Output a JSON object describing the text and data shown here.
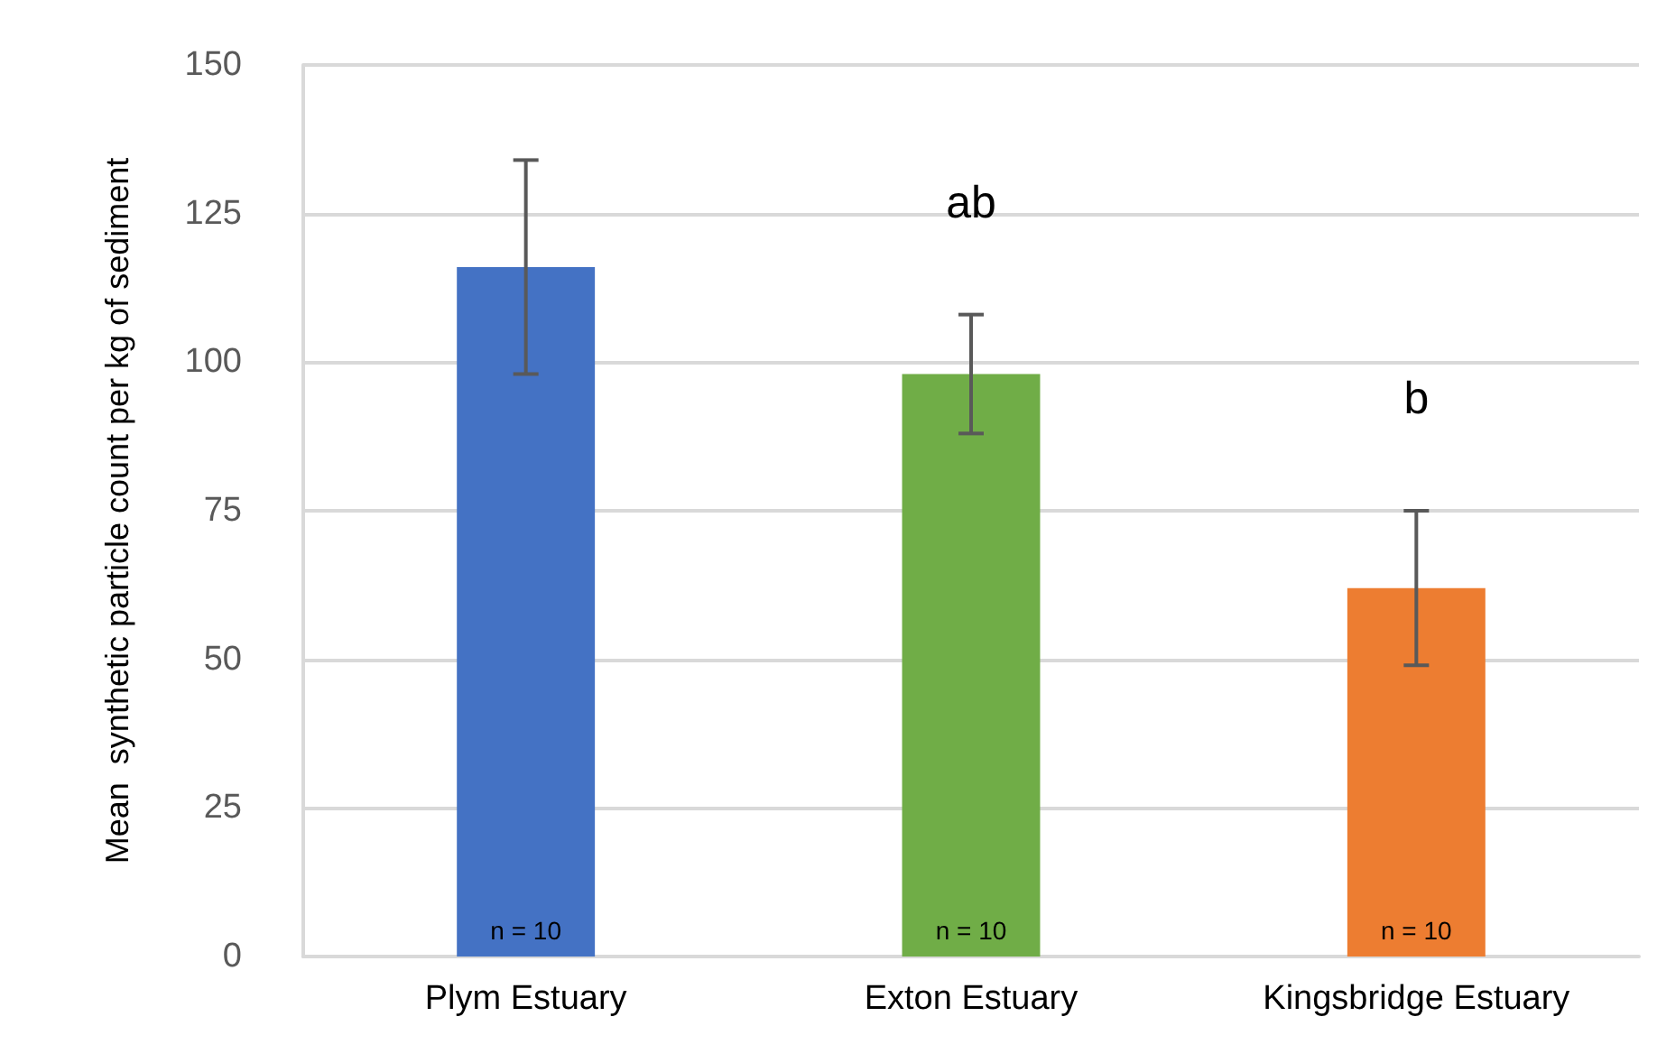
{
  "chart_data": {
    "type": "bar",
    "ylabel": "Mean  synthetic particle count per kg of sediment",
    "categories": [
      "Plym Estuary",
      "Exton Estuary",
      "Kingsbridge Estuary"
    ],
    "values": [
      116,
      98,
      62
    ],
    "colors": [
      "#4472c4",
      "#70ad47",
      "#ed7d31"
    ],
    "errors": [
      [
        98,
        134
      ],
      [
        88,
        108
      ],
      [
        49,
        75
      ]
    ],
    "ylim": [
      0,
      150
    ],
    "yticks": [
      0,
      25,
      50,
      75,
      100,
      125,
      150
    ],
    "grid": "y",
    "annotations": [
      "ab",
      "b",
      "n = 10",
      "n = 10",
      "n = 10"
    ]
  }
}
